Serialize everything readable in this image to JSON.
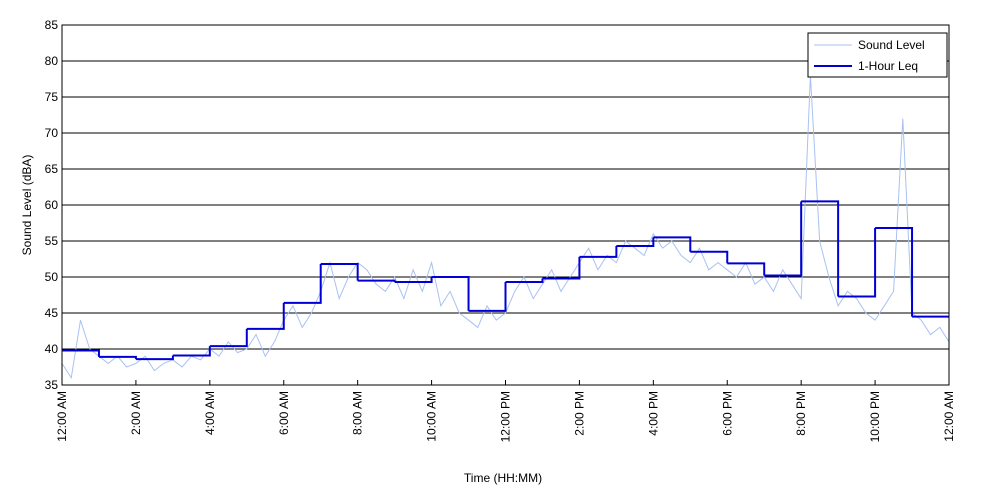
{
  "chart_data": {
    "type": "line",
    "xlabel": "Time (HH:MM)",
    "ylabel": "Sound Level (dBA)",
    "xlim": [
      0,
      24
    ],
    "ylim": [
      35,
      85
    ],
    "xticks": [
      {
        "value": 0,
        "label": "12:00 AM"
      },
      {
        "value": 2,
        "label": "2:00 AM"
      },
      {
        "value": 4,
        "label": "4:00 AM"
      },
      {
        "value": 6,
        "label": "6:00 AM"
      },
      {
        "value": 8,
        "label": "8:00 AM"
      },
      {
        "value": 10,
        "label": "10:00 AM"
      },
      {
        "value": 12,
        "label": "12:00 PM"
      },
      {
        "value": 14,
        "label": "2:00 PM"
      },
      {
        "value": 16,
        "label": "4:00 PM"
      },
      {
        "value": 18,
        "label": "6:00 PM"
      },
      {
        "value": 20,
        "label": "8:00 PM"
      },
      {
        "value": 22,
        "label": "10:00 PM"
      },
      {
        "value": 24,
        "label": "12:00 AM"
      }
    ],
    "yticks": [
      35,
      40,
      45,
      50,
      55,
      60,
      65,
      70,
      75,
      80,
      85
    ],
    "grid": true,
    "legend": "upper right",
    "series": [
      {
        "name": "Sound Level",
        "color": "#a9c1f2",
        "style": "line",
        "x": [
          0,
          0.25,
          0.5,
          0.75,
          1,
          1.25,
          1.5,
          1.75,
          2,
          2.25,
          2.5,
          2.75,
          3,
          3.25,
          3.5,
          3.75,
          4,
          4.25,
          4.5,
          4.75,
          5,
          5.25,
          5.5,
          5.75,
          6,
          6.25,
          6.5,
          6.75,
          7,
          7.25,
          7.5,
          7.75,
          8,
          8.25,
          8.5,
          8.75,
          9,
          9.25,
          9.5,
          9.75,
          10,
          10.25,
          10.5,
          10.75,
          11,
          11.25,
          11.5,
          11.75,
          12,
          12.25,
          12.5,
          12.75,
          13,
          13.25,
          13.5,
          13.75,
          14,
          14.25,
          14.5,
          14.75,
          15,
          15.25,
          15.5,
          15.75,
          16,
          16.25,
          16.5,
          16.75,
          17,
          17.25,
          17.5,
          17.75,
          18,
          18.25,
          18.5,
          18.75,
          19,
          19.25,
          19.5,
          19.75,
          20,
          20.25,
          20.5,
          20.75,
          21,
          21.25,
          21.5,
          21.75,
          22,
          22.25,
          22.5,
          22.75,
          23,
          23.25,
          23.5,
          23.75,
          24
        ],
        "values": [
          38,
          36,
          44,
          40,
          39,
          38,
          39,
          37.5,
          38,
          39,
          37,
          38,
          38.5,
          37.5,
          39,
          38.5,
          40,
          39,
          41,
          39.5,
          40,
          42,
          39,
          41,
          44,
          46,
          43,
          45,
          48,
          52,
          47,
          50,
          52,
          51,
          49,
          48,
          50,
          47,
          51,
          48,
          52,
          46,
          48,
          45,
          44,
          43,
          46,
          44,
          45,
          48,
          50,
          47,
          49,
          51,
          48,
          50,
          52,
          54,
          51,
          53,
          52,
          55,
          54,
          53,
          56,
          54,
          55,
          53,
          52,
          54,
          51,
          52,
          51,
          50,
          52,
          49,
          50,
          48,
          51,
          49,
          47,
          78,
          55,
          50,
          46,
          48,
          47,
          45,
          44,
          46,
          48,
          72,
          45,
          44,
          42,
          43,
          41
        ]
      },
      {
        "name": "1-Hour Leq",
        "color": "#0000d4",
        "style": "step",
        "x": [
          0,
          1,
          2,
          3,
          4,
          5,
          6,
          7,
          8,
          9,
          10,
          11,
          12,
          13,
          14,
          15,
          16,
          17,
          18,
          19,
          20,
          21,
          22,
          23
        ],
        "values": [
          39.8,
          38.9,
          38.6,
          39.1,
          40.4,
          42.8,
          46.4,
          51.8,
          49.5,
          49.3,
          50.0,
          45.3,
          49.3,
          49.8,
          52.8,
          54.3,
          55.5,
          53.5,
          51.9,
          50.2,
          60.5,
          47.3,
          56.8,
          44.5
        ]
      }
    ]
  }
}
